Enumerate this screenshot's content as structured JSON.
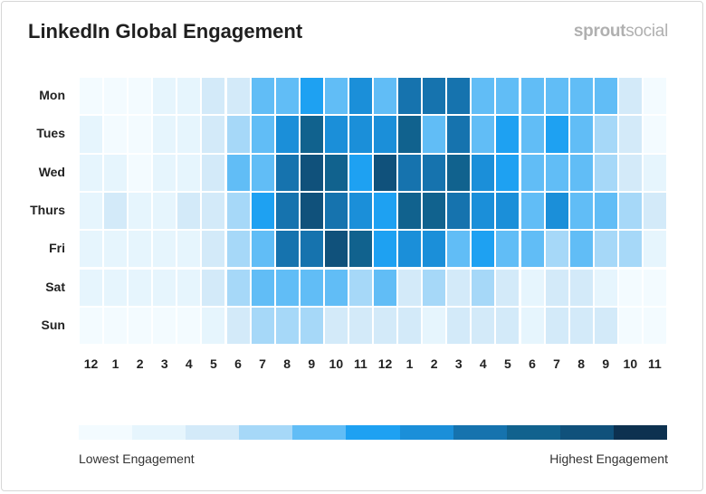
{
  "chart_data": {
    "type": "heatmap",
    "title": "LinkedIn Global Engagement",
    "brand": "sproutsocial",
    "rows": [
      "Mon",
      "Tues",
      "Wed",
      "Thurs",
      "Fri",
      "Sat",
      "Sun"
    ],
    "columns": [
      "12",
      "1",
      "2",
      "3",
      "4",
      "5",
      "6",
      "7",
      "8",
      "9",
      "10",
      "11",
      "12",
      "1",
      "2",
      "3",
      "4",
      "5",
      "6",
      "7",
      "8",
      "9",
      "10",
      "11"
    ],
    "values": [
      [
        0,
        0,
        0,
        1,
        1,
        2,
        2,
        4,
        4,
        5,
        4,
        6,
        4,
        7,
        7,
        7,
        4,
        4,
        4,
        4,
        4,
        4,
        2,
        0
      ],
      [
        1,
        0,
        0,
        1,
        1,
        2,
        3,
        4,
        6,
        8,
        6,
        6,
        6,
        8,
        4,
        7,
        4,
        5,
        4,
        5,
        4,
        3,
        2,
        0
      ],
      [
        1,
        1,
        0,
        1,
        1,
        2,
        4,
        4,
        7,
        9,
        8,
        5,
        9,
        7,
        7,
        8,
        6,
        5,
        4,
        4,
        4,
        3,
        2,
        1
      ],
      [
        1,
        2,
        1,
        1,
        2,
        2,
        3,
        5,
        7,
        9,
        7,
        6,
        5,
        8,
        8,
        7,
        6,
        6,
        4,
        6,
        4,
        4,
        3,
        2
      ],
      [
        1,
        1,
        1,
        1,
        1,
        2,
        3,
        4,
        7,
        7,
        9,
        8,
        5,
        6,
        6,
        4,
        5,
        4,
        4,
        3,
        4,
        3,
        3,
        1
      ],
      [
        1,
        1,
        1,
        1,
        1,
        2,
        3,
        4,
        4,
        4,
        4,
        3,
        4,
        2,
        3,
        2,
        3,
        2,
        1,
        2,
        2,
        1,
        0,
        0
      ],
      [
        0,
        0,
        0,
        0,
        0,
        1,
        2,
        3,
        3,
        3,
        2,
        2,
        2,
        2,
        1,
        2,
        2,
        2,
        1,
        2,
        2,
        2,
        0,
        0
      ]
    ],
    "scale_colors": [
      "#f3fbff",
      "#e6f5fd",
      "#d3eaf9",
      "#a6d8f8",
      "#61bdf6",
      "#1ea1f2",
      "#1b8fd9",
      "#1673ae",
      "#11628e",
      "#10517b",
      "#0d3150"
    ],
    "legend": {
      "low_label": "Lowest Engagement",
      "high_label": "Highest Engagement",
      "placement": "bottom"
    }
  }
}
